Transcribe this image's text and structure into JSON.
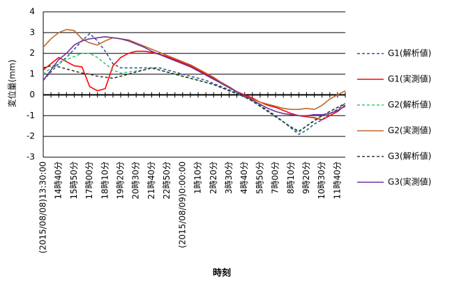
{
  "chart_data": {
    "type": "line",
    "y_label": "変位量(mm)",
    "x_label": "時刻",
    "categories": [
      "(2015/08/08)13:30:00",
      null,
      "14時40分",
      null,
      "15時50分",
      null,
      "17時00分",
      null,
      "18時10分",
      null,
      "19時20分",
      null,
      "20時30分",
      null,
      "21時40分",
      null,
      "22時50分",
      null,
      "(2015/08/09)0:00:00",
      null,
      "1時10分",
      null,
      "2時20分",
      null,
      "3時30分",
      null,
      "4時40分",
      null,
      "5時50分",
      null,
      "7時00分",
      null,
      "8時10分",
      null,
      "9時20分",
      null,
      "10時30分",
      null,
      "11時40分",
      null
    ],
    "ylim": [
      -3,
      4
    ],
    "yticks": [
      -3,
      -2,
      -1,
      0,
      1,
      2,
      3,
      4
    ],
    "grid": true,
    "series": [
      {
        "name": "G1(解析値)",
        "color": "#2e5597",
        "dashed": true,
        "values": [
          0.7,
          1.1,
          1.5,
          1.8,
          2.2,
          2.6,
          2.95,
          2.6,
          2.1,
          1.5,
          1.3,
          1.3,
          1.3,
          1.3,
          1.3,
          1.3,
          1.2,
          1.1,
          1.0,
          0.9,
          0.8,
          0.7,
          0.55,
          0.4,
          0.25,
          0.1,
          -0.05,
          -0.25,
          -0.5,
          -0.75,
          -1.0,
          -1.3,
          -1.6,
          -1.9,
          -1.7,
          -1.4,
          -1.2,
          -0.9,
          -0.7,
          -0.4
        ]
      },
      {
        "name": "G1(実測値)",
        "color": "#ff0000",
        "dashed": false,
        "values": [
          1.2,
          1.5,
          1.8,
          1.6,
          1.4,
          1.35,
          0.4,
          0.2,
          0.3,
          1.4,
          1.8,
          2.0,
          2.1,
          2.1,
          2.05,
          1.95,
          1.85,
          1.7,
          1.55,
          1.4,
          1.2,
          1.0,
          0.8,
          0.55,
          0.35,
          0.15,
          0.0,
          -0.15,
          -0.35,
          -0.5,
          -0.6,
          -0.75,
          -0.9,
          -1.0,
          -1.05,
          -1.1,
          -1.2,
          -1.0,
          -0.8,
          -0.5
        ]
      },
      {
        "name": "G2(解析値)",
        "color": "#33cc66",
        "dashed": true,
        "values": [
          1.0,
          1.3,
          1.5,
          1.7,
          1.85,
          2.0,
          2.0,
          1.8,
          1.5,
          1.2,
          1.05,
          1.1,
          1.15,
          1.2,
          1.3,
          1.2,
          1.1,
          1.0,
          0.9,
          0.8,
          0.7,
          0.6,
          0.5,
          0.35,
          0.2,
          0.05,
          -0.1,
          -0.3,
          -0.55,
          -0.8,
          -1.05,
          -1.3,
          -1.55,
          -1.8,
          -1.5,
          -1.2,
          -1.0,
          -0.8,
          -0.6,
          -0.4
        ]
      },
      {
        "name": "G2(実測値)",
        "color": "#c0652a",
        "dashed": false,
        "values": [
          2.3,
          2.7,
          3.0,
          3.15,
          3.1,
          2.7,
          2.5,
          2.4,
          2.6,
          2.75,
          2.7,
          2.65,
          2.5,
          2.35,
          2.2,
          2.05,
          1.9,
          1.75,
          1.6,
          1.45,
          1.25,
          1.05,
          0.85,
          0.6,
          0.4,
          0.15,
          -0.05,
          -0.2,
          -0.35,
          -0.45,
          -0.55,
          -0.65,
          -0.7,
          -0.7,
          -0.65,
          -0.7,
          -0.5,
          -0.2,
          0.0,
          0.2
        ]
      },
      {
        "name": "G3(解析値)",
        "color": "#333333",
        "dashed": true,
        "values": [
          1.3,
          1.4,
          1.35,
          1.25,
          1.15,
          1.05,
          1.0,
          0.9,
          0.85,
          0.8,
          0.9,
          1.0,
          1.1,
          1.2,
          1.3,
          1.2,
          1.1,
          1.0,
          0.9,
          0.8,
          0.7,
          0.6,
          0.5,
          0.35,
          0.2,
          0.05,
          -0.1,
          -0.3,
          -0.55,
          -0.8,
          -1.05,
          -1.3,
          -1.55,
          -1.75,
          -1.5,
          -1.25,
          -1.0,
          -0.8,
          -0.6,
          -0.45
        ]
      },
      {
        "name": "G3(実測値)",
        "color": "#7030a0",
        "dashed": false,
        "values": [
          0.7,
          1.2,
          1.7,
          2.0,
          2.4,
          2.6,
          2.7,
          2.75,
          2.8,
          2.75,
          2.7,
          2.6,
          2.45,
          2.3,
          2.1,
          1.95,
          1.8,
          1.65,
          1.5,
          1.35,
          1.15,
          0.95,
          0.75,
          0.55,
          0.35,
          0.15,
          -0.05,
          -0.25,
          -0.45,
          -0.65,
          -0.8,
          -0.9,
          -0.95,
          -1.0,
          -1.0,
          -0.95,
          -0.95,
          -0.9,
          -0.75,
          -0.55
        ]
      }
    ]
  }
}
